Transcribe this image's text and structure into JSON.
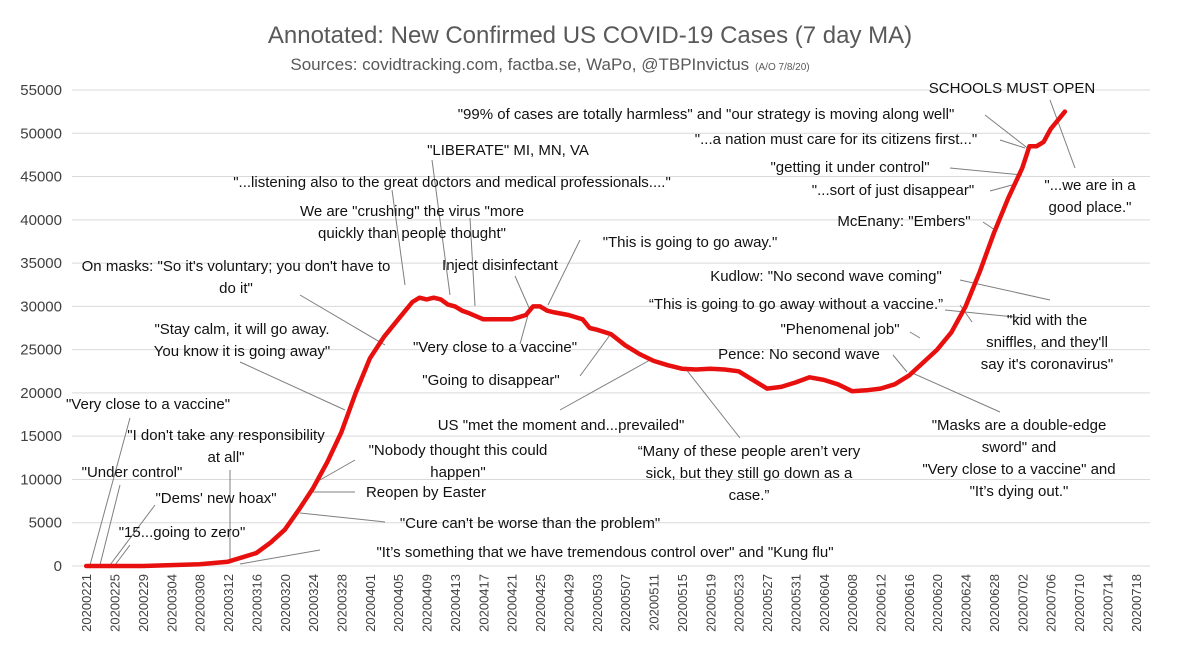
{
  "chart_data": {
    "type": "line",
    "title": "Annotated: New Confirmed US COVID-19 Cases (7 day MA)",
    "subtitle": "Sources: covidtracking.com, factba.se, WaPo, @TBPInvictus",
    "subtitle_note": "(A/O 7/8/20)",
    "xlabel": "",
    "ylabel": "",
    "ylim": [
      0,
      55000
    ],
    "yticks": [
      0,
      5000,
      10000,
      15000,
      20000,
      25000,
      30000,
      35000,
      40000,
      45000,
      50000,
      55000
    ],
    "grid": true,
    "legend": "none",
    "line_color": "#e8100f",
    "x_ticks": [
      "20200221",
      "20200225",
      "20200229",
      "20200304",
      "20200308",
      "20200312",
      "20200316",
      "20200320",
      "20200324",
      "20200328",
      "20200401",
      "20200405",
      "20200409",
      "20200413",
      "20200417",
      "20200421",
      "20200425",
      "20200429",
      "20200503",
      "20200507",
      "20200511",
      "20200515",
      "20200519",
      "20200523",
      "20200527",
      "20200531",
      "20200604",
      "20200608",
      "20200612",
      "20200616",
      "20200620",
      "20200624",
      "20200628",
      "20200702",
      "20200706",
      "20200710",
      "20200714",
      "20200718"
    ],
    "series": [
      {
        "x": [
          "20200221",
          "20200229",
          "20200308",
          "20200312",
          "20200316",
          "20200318",
          "20200320",
          "20200322",
          "20200324",
          "20200326",
          "20200328",
          "20200330",
          "20200401",
          "20200403",
          "20200405",
          "20200407",
          "20200408",
          "20200409",
          "20200410",
          "20200411",
          "20200412",
          "20200413",
          "20200414",
          "20200415",
          "20200417",
          "20200419",
          "20200421",
          "20200423",
          "20200424",
          "20200425",
          "20200426",
          "20200427",
          "20200429",
          "20200501",
          "20200502",
          "20200503",
          "20200505",
          "20200507",
          "20200509",
          "20200511",
          "20200513",
          "20200515",
          "20200517",
          "20200519",
          "20200521",
          "20200523",
          "20200525",
          "20200527",
          "20200529",
          "20200531",
          "20200602",
          "20200604",
          "20200606",
          "20200608",
          "20200610",
          "20200612",
          "20200614",
          "20200616",
          "20200618",
          "20200620",
          "20200622",
          "20200624",
          "20200626",
          "20200628",
          "20200630",
          "20200702",
          "20200703",
          "20200704",
          "20200705",
          "20200706",
          "20200707",
          "20200708"
        ],
        "values": [
          0,
          0,
          200,
          500,
          1500,
          2700,
          4200,
          6500,
          9000,
          12000,
          15500,
          20000,
          24000,
          26500,
          28500,
          30500,
          31000,
          30800,
          31000,
          30800,
          30200,
          30000,
          29500,
          29200,
          28500,
          28500,
          28500,
          29000,
          30000,
          30000,
          29500,
          29300,
          29000,
          28500,
          27500,
          27300,
          26800,
          25500,
          24500,
          23700,
          23200,
          22800,
          22700,
          22800,
          22700,
          22500,
          21500,
          20500,
          20700,
          21200,
          21800,
          21500,
          21000,
          20200,
          20300,
          20500,
          21000,
          22000,
          23500,
          25000,
          27000,
          30000,
          34000,
          38500,
          42500,
          46000,
          48500,
          48500,
          49000,
          50500,
          51500,
          52500
        ]
      }
    ],
    "annotations": [
      {
        "id": "schools-must-open",
        "text": [
          "SCHOOLS MUST OPEN"
        ]
      },
      {
        "id": "harmless",
        "text": [
          "\"99% of cases are totally harmless\" and \"our strategy is moving along well\""
        ]
      },
      {
        "id": "nation-must-care",
        "text": [
          "\"...a nation must care for its citizens first...\""
        ]
      },
      {
        "id": "getting-under-control",
        "text": [
          "\"getting it under control\""
        ]
      },
      {
        "id": "sort-of-disappear",
        "text": [
          "\"...sort of just disappear\""
        ]
      },
      {
        "id": "good-place",
        "text": [
          "\"...we are in a",
          "good place.\""
        ]
      },
      {
        "id": "embers",
        "text": [
          "McEnany: \"Embers\""
        ]
      },
      {
        "id": "liberate",
        "text": [
          "\"LIBERATE\" MI, MN, VA"
        ]
      },
      {
        "id": "listening",
        "text": [
          "\"...listening also to the great doctors and medical professionals....\""
        ]
      },
      {
        "id": "crushing",
        "text": [
          "We are \"crushing\" the virus \"more",
          "quickly than people thought\""
        ]
      },
      {
        "id": "go-away-1",
        "text": [
          "\"This is going to go away.\""
        ]
      },
      {
        "id": "masks-voluntary",
        "text": [
          "On masks: \"So it's voluntary; you don't have to",
          "do it\""
        ]
      },
      {
        "id": "inject",
        "text": [
          "Inject disinfectant"
        ]
      },
      {
        "id": "kudlow",
        "text": [
          "Kudlow: \"No second wave coming\""
        ]
      },
      {
        "id": "go-away-without-vaccine",
        "text": [
          "“This is going to go away without a vaccine.”"
        ]
      },
      {
        "id": "stay-calm",
        "text": [
          "\"Stay calm, it will go away.",
          "You know it is going away\""
        ]
      },
      {
        "id": "very-close-vaccine-apr",
        "text": [
          "\"Very close to a vaccine\""
        ]
      },
      {
        "id": "phenomenal-job",
        "text": [
          "\"Phenomenal job\""
        ]
      },
      {
        "id": "kid-sniffles",
        "text": [
          "\"kid with the",
          "sniffles, and they'll",
          "say it's coronavirus\""
        ]
      },
      {
        "id": "going-to-disappear",
        "text": [
          "\"Going to disappear\""
        ]
      },
      {
        "id": "pence",
        "text": [
          "Pence: No second wave"
        ]
      },
      {
        "id": "very-close-vaccine-feb",
        "text": [
          "\"Very close to a vaccine\""
        ]
      },
      {
        "id": "met-the-moment",
        "text": [
          "US \"met the moment and...prevailed\""
        ]
      },
      {
        "id": "many-not-sick",
        "text": [
          "“Many of these people aren’t very",
          "sick, but they still go down as a",
          "case.”"
        ]
      },
      {
        "id": "double-edge",
        "text": [
          "\"Masks are a double-edge",
          "sword\" and",
          "\"Very close to a vaccine\" and",
          "\"It’s dying out.\""
        ]
      },
      {
        "id": "no-responsibility",
        "text": [
          "\"I don't take any responsibility",
          "at all\""
        ]
      },
      {
        "id": "nobody-thought",
        "text": [
          "\"Nobody thought this could",
          "happen\""
        ]
      },
      {
        "id": "under-control",
        "text": [
          "\"Under control\""
        ]
      },
      {
        "id": "reopen-easter",
        "text": [
          "Reopen by Easter"
        ]
      },
      {
        "id": "dems-hoax",
        "text": [
          "\"Dems' new hoax\""
        ]
      },
      {
        "id": "cure-worse",
        "text": [
          "\"Cure can't be worse than the problem\""
        ]
      },
      {
        "id": "fifteen-zero",
        "text": [
          "\"15...going to zero\""
        ]
      },
      {
        "id": "tremendous-control",
        "text": [
          "\"It’s something that we have tremendous control over\" and \"Kung flu\""
        ]
      }
    ]
  }
}
